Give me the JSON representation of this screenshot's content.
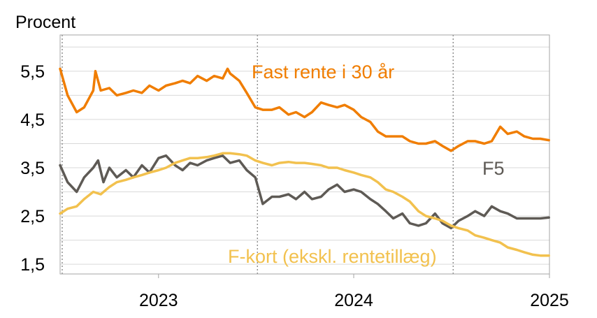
{
  "chart_data": {
    "type": "line",
    "ylabel": "Procent",
    "ylim": [
      1.3,
      6.25
    ],
    "xlim": [
      "2022-07-01",
      "2025-01-01"
    ],
    "y_ticks": [
      {
        "value": 1.5,
        "label": "1,5"
      },
      {
        "value": 2.5,
        "label": "2,5"
      },
      {
        "value": 3.5,
        "label": "3,5"
      },
      {
        "value": 4.5,
        "label": "4,5"
      },
      {
        "value": 5.5,
        "label": "5,5"
      }
    ],
    "x_ticks": [
      {
        "value": "2023-01-01",
        "label": "2023"
      },
      {
        "value": "2024-01-01",
        "label": "2024"
      },
      {
        "value": "2025-01-01",
        "label": "2025"
      }
    ],
    "vertical_dotted_lines": [
      "2022-07-01",
      "2023-07-01",
      "2024-07-01"
    ],
    "grid": true,
    "series": [
      {
        "name": "Fast rente i 30 år",
        "color": "#F07D00",
        "x": [
          "2022-07-01",
          "2022-07-15",
          "2022-08-01",
          "2022-08-15",
          "2022-09-01",
          "2022-09-05",
          "2022-09-15",
          "2022-10-01",
          "2022-10-15",
          "2022-11-01",
          "2022-11-15",
          "2022-12-01",
          "2022-12-15",
          "2023-01-01",
          "2023-01-15",
          "2023-02-01",
          "2023-02-15",
          "2023-03-01",
          "2023-03-15",
          "2023-04-01",
          "2023-04-15",
          "2023-05-01",
          "2023-05-10",
          "2023-05-15",
          "2023-06-01",
          "2023-06-15",
          "2023-07-01",
          "2023-07-15",
          "2023-08-01",
          "2023-08-15",
          "2023-09-01",
          "2023-09-15",
          "2023-10-01",
          "2023-10-15",
          "2023-11-01",
          "2023-11-15",
          "2023-12-01",
          "2023-12-15",
          "2024-01-01",
          "2024-01-15",
          "2024-02-01",
          "2024-02-15",
          "2024-03-01",
          "2024-03-15",
          "2024-04-01",
          "2024-04-15",
          "2024-05-01",
          "2024-05-15",
          "2024-06-01",
          "2024-06-15",
          "2024-07-01",
          "2024-07-15",
          "2024-08-01",
          "2024-08-15",
          "2024-09-01",
          "2024-09-15",
          "2024-10-01",
          "2024-10-15",
          "2024-11-01",
          "2024-11-15",
          "2024-12-01",
          "2024-12-15",
          "2024-12-31"
        ],
        "y": [
          5.55,
          5.0,
          4.65,
          4.75,
          5.1,
          5.5,
          5.1,
          5.15,
          5.0,
          5.05,
          5.1,
          5.05,
          5.2,
          5.1,
          5.2,
          5.25,
          5.3,
          5.25,
          5.4,
          5.3,
          5.4,
          5.35,
          5.55,
          5.45,
          5.3,
          5.05,
          4.75,
          4.7,
          4.7,
          4.75,
          4.6,
          4.65,
          4.55,
          4.65,
          4.85,
          4.8,
          4.75,
          4.8,
          4.7,
          4.55,
          4.45,
          4.25,
          4.15,
          4.15,
          4.15,
          4.05,
          4.0,
          4.0,
          4.05,
          3.95,
          3.85,
          3.95,
          4.05,
          4.05,
          4.0,
          4.05,
          4.35,
          4.2,
          4.25,
          4.15,
          4.1,
          4.1,
          4.07
        ]
      },
      {
        "name": "F5",
        "color": "#5E5A55",
        "x": [
          "2022-07-01",
          "2022-07-15",
          "2022-08-01",
          "2022-08-15",
          "2022-09-01",
          "2022-09-10",
          "2022-09-20",
          "2022-10-01",
          "2022-10-15",
          "2022-11-01",
          "2022-11-15",
          "2022-12-01",
          "2022-12-15",
          "2023-01-01",
          "2023-01-15",
          "2023-02-01",
          "2023-02-15",
          "2023-03-01",
          "2023-03-15",
          "2023-04-01",
          "2023-04-15",
          "2023-05-01",
          "2023-05-15",
          "2023-06-01",
          "2023-06-15",
          "2023-07-01",
          "2023-07-15",
          "2023-08-01",
          "2023-08-15",
          "2023-09-01",
          "2023-09-15",
          "2023-10-01",
          "2023-10-15",
          "2023-11-01",
          "2023-11-15",
          "2023-12-01",
          "2023-12-15",
          "2024-01-01",
          "2024-01-15",
          "2024-02-01",
          "2024-02-15",
          "2024-03-01",
          "2024-03-15",
          "2024-04-01",
          "2024-04-15",
          "2024-05-01",
          "2024-05-15",
          "2024-06-01",
          "2024-06-15",
          "2024-07-01",
          "2024-07-15",
          "2024-08-01",
          "2024-08-15",
          "2024-09-01",
          "2024-09-15",
          "2024-10-01",
          "2024-10-15",
          "2024-11-01",
          "2024-11-15",
          "2024-12-01",
          "2024-12-15",
          "2024-12-31"
        ],
        "y": [
          3.55,
          3.2,
          3.0,
          3.3,
          3.5,
          3.65,
          3.2,
          3.5,
          3.3,
          3.45,
          3.3,
          3.55,
          3.4,
          3.7,
          3.75,
          3.55,
          3.45,
          3.6,
          3.55,
          3.65,
          3.7,
          3.75,
          3.6,
          3.65,
          3.45,
          3.3,
          2.75,
          2.9,
          2.9,
          2.95,
          2.85,
          3.0,
          2.85,
          2.9,
          3.05,
          3.15,
          3.0,
          3.05,
          3.0,
          2.85,
          2.75,
          2.6,
          2.45,
          2.55,
          2.35,
          2.3,
          2.35,
          2.55,
          2.35,
          2.25,
          2.4,
          2.5,
          2.6,
          2.5,
          2.7,
          2.6,
          2.55,
          2.45,
          2.45,
          2.45,
          2.45,
          2.47
        ]
      },
      {
        "name": "F-kort (ekskl. rentetillæg)",
        "color": "#F2C14E",
        "x": [
          "2022-07-01",
          "2022-07-15",
          "2022-08-01",
          "2022-08-15",
          "2022-09-01",
          "2022-09-15",
          "2022-10-01",
          "2022-10-15",
          "2022-11-01",
          "2022-11-15",
          "2022-12-01",
          "2022-12-15",
          "2023-01-01",
          "2023-01-15",
          "2023-02-01",
          "2023-02-15",
          "2023-03-01",
          "2023-03-15",
          "2023-04-01",
          "2023-04-15",
          "2023-05-01",
          "2023-05-15",
          "2023-06-01",
          "2023-06-15",
          "2023-07-01",
          "2023-07-15",
          "2023-08-01",
          "2023-08-15",
          "2023-09-01",
          "2023-09-15",
          "2023-10-01",
          "2023-10-15",
          "2023-11-01",
          "2023-11-15",
          "2023-12-01",
          "2023-12-15",
          "2024-01-01",
          "2024-01-15",
          "2024-02-01",
          "2024-02-15",
          "2024-03-01",
          "2024-03-15",
          "2024-04-01",
          "2024-04-15",
          "2024-05-01",
          "2024-05-15",
          "2024-06-01",
          "2024-06-15",
          "2024-07-01",
          "2024-07-15",
          "2024-08-01",
          "2024-08-15",
          "2024-09-01",
          "2024-09-15",
          "2024-10-01",
          "2024-10-15",
          "2024-11-01",
          "2024-11-15",
          "2024-12-01",
          "2024-12-15",
          "2024-12-31"
        ],
        "y": [
          2.55,
          2.65,
          2.7,
          2.85,
          3.0,
          2.95,
          3.1,
          3.2,
          3.25,
          3.3,
          3.35,
          3.4,
          3.45,
          3.5,
          3.6,
          3.65,
          3.7,
          3.7,
          3.72,
          3.75,
          3.8,
          3.8,
          3.78,
          3.75,
          3.65,
          3.6,
          3.55,
          3.6,
          3.62,
          3.6,
          3.6,
          3.58,
          3.55,
          3.5,
          3.5,
          3.45,
          3.4,
          3.35,
          3.3,
          3.2,
          3.05,
          3.0,
          2.9,
          2.8,
          2.6,
          2.5,
          2.45,
          2.4,
          2.3,
          2.25,
          2.2,
          2.1,
          2.05,
          2.0,
          1.95,
          1.85,
          1.8,
          1.75,
          1.7,
          1.68,
          1.68
        ]
      }
    ],
    "annotations": [
      {
        "text": "Fast rente i 30 år",
        "series": 0
      },
      {
        "text": "F5",
        "series": 1
      },
      {
        "text": "F-kort (ekskl. rentetillæg)",
        "series": 2
      }
    ]
  }
}
